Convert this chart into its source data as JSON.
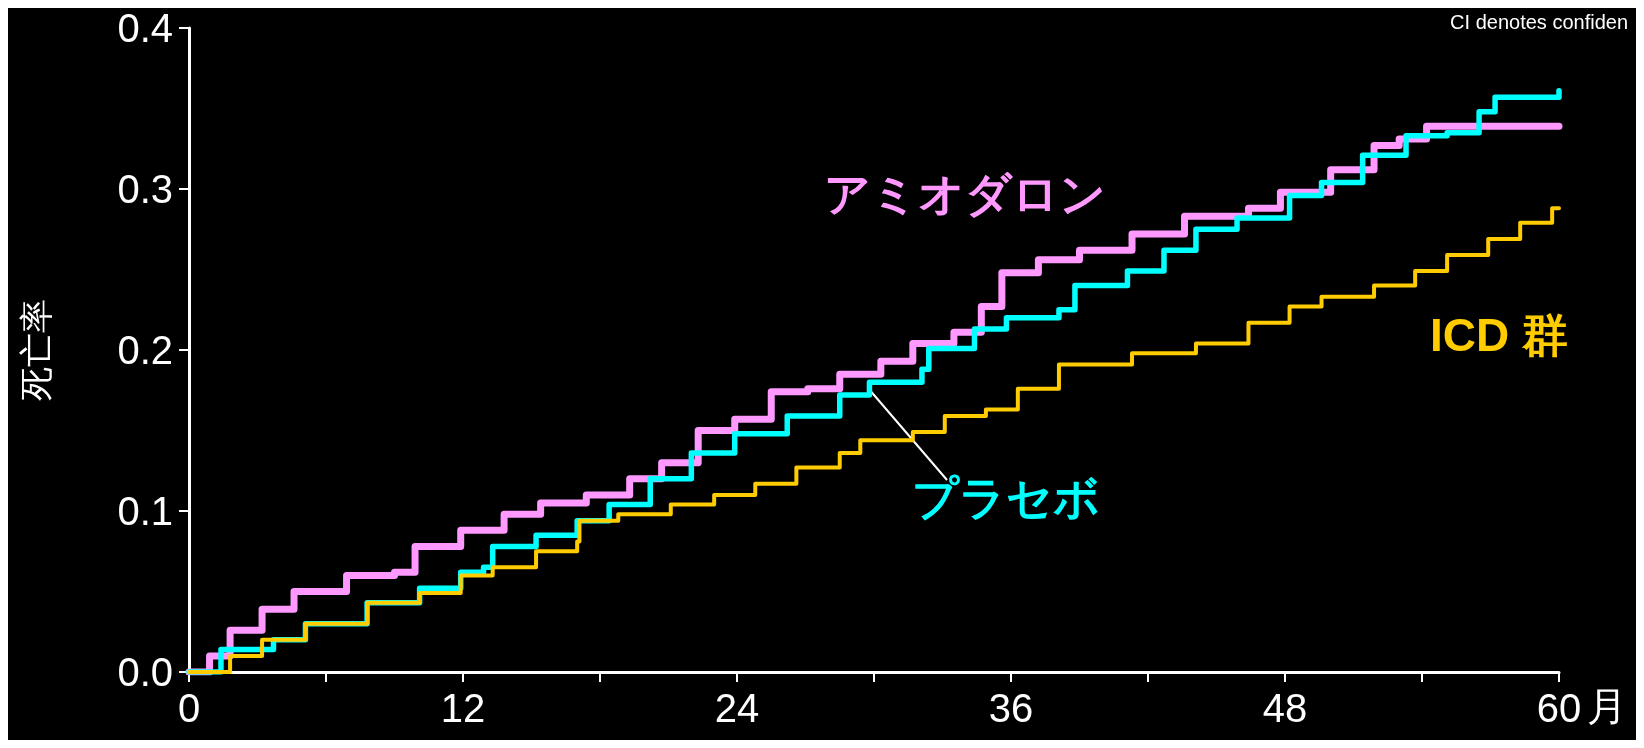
{
  "chart_data": {
    "type": "step",
    "xlabel": "月",
    "ylabel": "死亡率",
    "annotations": [
      "CI denotes confiden"
    ],
    "xlim": [
      0,
      60
    ],
    "ylim": [
      0,
      0.4
    ],
    "xticks": [
      0,
      {
        "value": 6,
        "label": null
      },
      12,
      {
        "value": 18,
        "label": null
      },
      24,
      {
        "value": 30,
        "label": null
      },
      36,
      {
        "value": 42,
        "label": null
      },
      48,
      {
        "value": 54,
        "label": null
      },
      60
    ],
    "yticks": [
      {
        "value": 0,
        "label": "0.0"
      },
      0.1,
      0.2,
      0.3,
      0.4
    ],
    "grid": false,
    "legend": false,
    "line_style": "solid",
    "marker": "none",
    "series": [
      {
        "name": "アミオダロン",
        "color": "#ff99ff",
        "x": [
          0,
          0.9,
          1.8,
          3.2,
          4.6,
          6.9,
          9.0,
          9.9,
          11.9,
          13.8,
          15.4,
          17.4,
          19.3,
          20.7,
          22.3,
          23.9,
          25.5,
          27.1,
          28.5,
          30.3,
          31.7,
          33.5,
          34.7,
          35.6,
          37.2,
          39.0,
          41.3,
          43.6,
          46.4,
          47.8,
          50.0,
          51.9,
          53.0,
          54.2,
          60
        ],
        "values": [
          0,
          0.01,
          0.026,
          0.039,
          0.05,
          0.06,
          0.062,
          0.078,
          0.088,
          0.098,
          0.105,
          0.11,
          0.12,
          0.13,
          0.15,
          0.157,
          0.174,
          0.176,
          0.185,
          0.193,
          0.204,
          0.211,
          0.227,
          0.248,
          0.256,
          0.262,
          0.272,
          0.283,
          0.288,
          0.298,
          0.312,
          0.327,
          0.331,
          0.339,
          0.339
        ]
      },
      {
        "name": "プラセボ",
        "color": "#00ffff",
        "x": [
          0,
          1.4,
          3.7,
          5.1,
          7.8,
          10.1,
          11.9,
          12.9,
          13.3,
          15.2,
          17.0,
          18.4,
          20.2,
          22.0,
          23.9,
          26.2,
          28.5,
          29.8,
          32.1,
          32.4,
          34.4,
          35.8,
          38.1,
          38.8,
          41.1,
          42.7,
          44.1,
          45.9,
          48.2,
          49.6,
          51.4,
          53.3,
          55.1,
          56.5,
          57.2,
          60
        ],
        "values": [
          0,
          0.014,
          0.02,
          0.03,
          0.043,
          0.052,
          0.062,
          0.065,
          0.078,
          0.085,
          0.094,
          0.104,
          0.12,
          0.136,
          0.148,
          0.159,
          0.172,
          0.18,
          0.188,
          0.201,
          0.213,
          0.22,
          0.225,
          0.24,
          0.249,
          0.262,
          0.275,
          0.282,
          0.296,
          0.304,
          0.321,
          0.333,
          0.335,
          0.348,
          0.357,
          0.361
        ]
      },
      {
        "name": "ICD 群",
        "color": "#ffcc00",
        "x": [
          0,
          1.8,
          3.2,
          5.1,
          7.8,
          10.1,
          11.9,
          13.3,
          15.2,
          17.0,
          17.1,
          18.8,
          21.1,
          23.0,
          24.8,
          26.6,
          28.5,
          29.4,
          31.7,
          33.1,
          34.9,
          36.3,
          38.1,
          41.3,
          44.1,
          46.4,
          48.2,
          49.6,
          51.9,
          53.7,
          55.1,
          56.9,
          58.3,
          59.7,
          60
        ],
        "values": [
          0,
          0.01,
          0.02,
          0.03,
          0.043,
          0.049,
          0.06,
          0.065,
          0.075,
          0.081,
          0.094,
          0.098,
          0.104,
          0.11,
          0.117,
          0.127,
          0.136,
          0.144,
          0.149,
          0.159,
          0.163,
          0.176,
          0.191,
          0.198,
          0.204,
          0.217,
          0.227,
          0.233,
          0.24,
          0.249,
          0.259,
          0.269,
          0.279,
          0.288,
          0.288
        ]
      }
    ]
  }
}
